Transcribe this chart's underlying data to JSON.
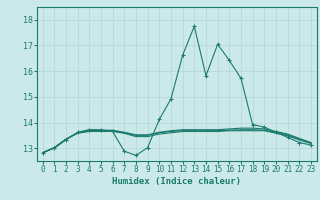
{
  "xlabel": "Humidex (Indice chaleur)",
  "xlim": [
    -0.5,
    23.5
  ],
  "ylim": [
    12.5,
    18.5
  ],
  "yticks": [
    13,
    14,
    15,
    16,
    17,
    18
  ],
  "xticks": [
    0,
    1,
    2,
    3,
    4,
    5,
    6,
    7,
    8,
    9,
    10,
    11,
    12,
    13,
    14,
    15,
    16,
    17,
    18,
    19,
    20,
    21,
    22,
    23
  ],
  "bg_color": "#cce9e9",
  "grid_color": "#b8d8d8",
  "line_color": "#1a7a6e",
  "tick_color": "#1a7a6e",
  "series": [
    {
      "x": [
        0,
        1,
        2,
        3,
        4,
        5,
        6,
        7,
        8,
        9,
        10,
        11,
        12,
        13,
        14,
        15,
        16,
        17,
        18,
        19,
        20,
        21,
        22,
        23
      ],
      "y": [
        12.82,
        13.0,
        13.32,
        13.62,
        13.72,
        13.72,
        13.65,
        12.88,
        12.72,
        13.02,
        14.12,
        14.92,
        16.62,
        17.75,
        15.82,
        17.05,
        16.42,
        15.72,
        13.92,
        13.82,
        13.62,
        13.42,
        13.22,
        13.12
      ],
      "marker": "+"
    },
    {
      "x": [
        0,
        1,
        2,
        3,
        4,
        5,
        6,
        7,
        8,
        9,
        10,
        11,
        12,
        13,
        14,
        15,
        16,
        17,
        18,
        19,
        20,
        21,
        22,
        23
      ],
      "y": [
        12.82,
        13.02,
        13.35,
        13.6,
        13.68,
        13.68,
        13.68,
        13.6,
        13.5,
        13.5,
        13.6,
        13.65,
        13.68,
        13.68,
        13.68,
        13.68,
        13.7,
        13.72,
        13.72,
        13.7,
        13.62,
        13.52,
        13.35,
        13.2
      ],
      "marker": null
    },
    {
      "x": [
        0,
        1,
        2,
        3,
        4,
        5,
        6,
        7,
        8,
        9,
        10,
        11,
        12,
        13,
        14,
        15,
        16,
        17,
        18,
        19,
        20,
        21,
        22,
        23
      ],
      "y": [
        12.82,
        13.02,
        13.35,
        13.6,
        13.7,
        13.7,
        13.7,
        13.62,
        13.52,
        13.52,
        13.62,
        13.68,
        13.72,
        13.72,
        13.72,
        13.72,
        13.75,
        13.78,
        13.78,
        13.75,
        13.65,
        13.55,
        13.38,
        13.22
      ],
      "marker": null
    },
    {
      "x": [
        0,
        1,
        2,
        3,
        4,
        5,
        6,
        7,
        8,
        9,
        10,
        11,
        12,
        13,
        14,
        15,
        16,
        17,
        18,
        19,
        20,
        21,
        22,
        23
      ],
      "y": [
        12.82,
        13.02,
        13.35,
        13.58,
        13.65,
        13.65,
        13.65,
        13.58,
        13.45,
        13.45,
        13.55,
        13.6,
        13.65,
        13.65,
        13.65,
        13.65,
        13.68,
        13.68,
        13.68,
        13.68,
        13.58,
        13.48,
        13.32,
        13.18
      ],
      "marker": null
    }
  ]
}
